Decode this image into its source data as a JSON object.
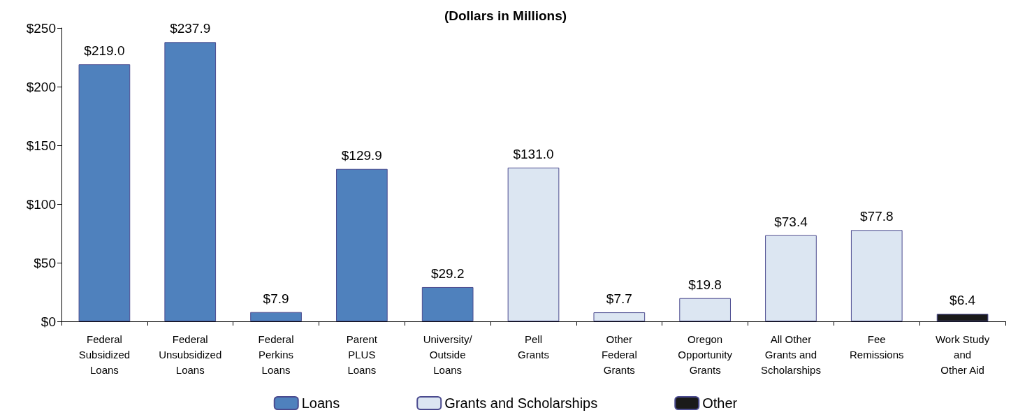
{
  "chart_data": {
    "type": "bar",
    "title": "(Dollars in Millions)",
    "categories": [
      "Federal\nSubsidized\nLoans",
      "Federal\nUnsubsidized\nLoans",
      "Federal\nPerkins\nLoans",
      "Parent\nPLUS\nLoans",
      "University/\nOutside\nLoans",
      "Pell\nGrants",
      "Other\nFederal\nGrants",
      "Oregon\nOpportunity\nGrants",
      "All Other\nGrants and\nScholarships",
      "Fee\nRemissions",
      "Work Study\nand\nOther Aid"
    ],
    "series": [
      {
        "name": "Loans",
        "color": "#4f81bd",
        "values": [
          219.0,
          237.9,
          7.9,
          129.9,
          29.2,
          null,
          null,
          null,
          null,
          null,
          null
        ],
        "value_labels": [
          "$219.0",
          "$237.9",
          "$7.9",
          "$129.9",
          "$29.2",
          null,
          null,
          null,
          null,
          null,
          null
        ]
      },
      {
        "name": "Grants and Scholarships",
        "color": "#dce6f2",
        "values": [
          null,
          null,
          null,
          null,
          null,
          131.0,
          7.7,
          19.8,
          73.4,
          77.8,
          null
        ],
        "value_labels": [
          null,
          null,
          null,
          null,
          null,
          "$131.0",
          "$7.7",
          "$19.8",
          "$73.4",
          "$77.8",
          null
        ]
      },
      {
        "name": "Other",
        "color": "#1a1a1a",
        "values": [
          null,
          null,
          null,
          null,
          null,
          null,
          null,
          null,
          null,
          null,
          6.4
        ],
        "value_labels": [
          null,
          null,
          null,
          null,
          null,
          null,
          null,
          null,
          null,
          null,
          "$6.4"
        ]
      }
    ],
    "ylim": [
      0,
      250
    ],
    "yticks": [
      {
        "value": 0,
        "label": "$0"
      },
      {
        "value": 50,
        "label": "$50"
      },
      {
        "value": 100,
        "label": "$100"
      },
      {
        "value": 150,
        "label": "$150"
      },
      {
        "value": 200,
        "label": "$200"
      },
      {
        "value": 250,
        "label": "$250"
      }
    ],
    "grid": false,
    "legend": "bottom"
  }
}
